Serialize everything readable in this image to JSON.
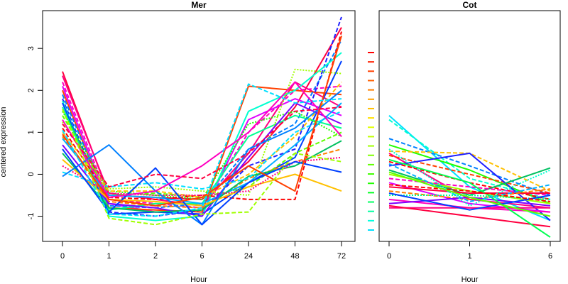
{
  "y_axis_label": "centered expression",
  "colors": {
    "palette": [
      "#ff0040",
      "#ff0080",
      "#ff00c0",
      "#e000ff",
      "#a000ff",
      "#6000ff",
      "#0040ff",
      "#0080ff",
      "#00b0ff",
      "#00e0ff",
      "#00ffd0",
      "#00ff90",
      "#00ff50",
      "#20ff00",
      "#60ff00",
      "#a0ff00",
      "#e0ff00",
      "#ffc000",
      "#ff8000",
      "#ff4000",
      "#ff0000",
      "#2020ff",
      "#8000ff",
      "#00c060"
    ],
    "legend_swatches": [
      "#ff0000",
      "#ff2000",
      "#ff4000",
      "#ff6000",
      "#ff8000",
      "#ffa000",
      "#ffc000",
      "#ffe000",
      "#e0ff00",
      "#c0ff00",
      "#a0ff00",
      "#80ff00",
      "#60ff00",
      "#40ff00",
      "#20ff00",
      "#00ff20",
      "#00ff60",
      "#00ffa0",
      "#00ffe0",
      "#00e0ff"
    ]
  },
  "chart_data": [
    {
      "type": "line",
      "title": "Mer",
      "xlabel": "Hour",
      "ylabel": "centered expression",
      "categories": [
        "0",
        "1",
        "2",
        "6",
        "24",
        "48",
        "72"
      ],
      "ylim": [
        -1.6,
        3.9
      ],
      "yticks": [
        -1,
        0,
        1,
        2,
        3
      ],
      "series": [
        {
          "values": [
            2.45,
            -0.5,
            -0.55,
            -0.6,
            0.3,
            1.6,
            3.5
          ],
          "color": "#ff0040",
          "dash": "solid"
        },
        {
          "values": [
            2.35,
            -0.45,
            -0.6,
            -0.75,
            0.5,
            2.2,
            1.6
          ],
          "color": "#ff0080",
          "dash": "solid"
        },
        {
          "values": [
            2.2,
            -0.6,
            -0.7,
            -0.8,
            1.0,
            2.0,
            2.1
          ],
          "color": "#ff00c0",
          "dash": "dashed"
        },
        {
          "values": [
            2.1,
            -0.7,
            -0.9,
            -0.95,
            1.3,
            1.8,
            1.4
          ],
          "color": "#e000ff",
          "dash": "solid"
        },
        {
          "values": [
            2.0,
            -0.8,
            -0.85,
            -0.9,
            2.1,
            2.0,
            1.9
          ],
          "color": "#ff4000",
          "dash": "solid"
        },
        {
          "values": [
            1.9,
            -0.75,
            -0.8,
            -0.7,
            0.6,
            1.2,
            3.2
          ],
          "color": "#0080ff",
          "dash": "dashed"
        },
        {
          "values": [
            1.8,
            -0.9,
            -1.0,
            -0.85,
            0.2,
            0.6,
            3.75
          ],
          "color": "#2020ff",
          "dash": "dashed"
        },
        {
          "values": [
            1.75,
            -1.0,
            -1.1,
            -1.0,
            1.5,
            2.0,
            2.9
          ],
          "color": "#00ffd0",
          "dash": "solid"
        },
        {
          "values": [
            1.7,
            -0.95,
            -0.9,
            -0.95,
            -0.2,
            0.4,
            2.7
          ],
          "color": "#0040ff",
          "dash": "solid"
        },
        {
          "values": [
            1.6,
            -0.85,
            -0.7,
            -0.7,
            0.9,
            1.4,
            1.1
          ],
          "color": "#00ff90",
          "dash": "solid"
        },
        {
          "values": [
            1.5,
            -0.4,
            -0.5,
            -0.6,
            1.2,
            1.5,
            0.9
          ],
          "color": "#20ff00",
          "dash": "dotted"
        },
        {
          "values": [
            1.4,
            -0.5,
            -0.45,
            -0.55,
            -0.3,
            0.5,
            1.0
          ],
          "color": "#60ff00",
          "dash": "dashed"
        },
        {
          "values": [
            1.25,
            -0.35,
            -0.3,
            -0.4,
            -0.5,
            2.5,
            2.4
          ],
          "color": "#a0ff00",
          "dash": "dotted"
        },
        {
          "values": [
            1.1,
            -0.55,
            -0.6,
            -0.5,
            -0.6,
            -0.6,
            3.4
          ],
          "color": "#ff0000",
          "dash": "dashed"
        },
        {
          "values": [
            1.0,
            -0.4,
            -0.4,
            -0.55,
            0.0,
            0.9,
            2.2
          ],
          "color": "#ffc000",
          "dash": "dashed"
        },
        {
          "values": [
            0.9,
            -0.65,
            -0.75,
            -0.8,
            -0.1,
            0.3,
            0.6
          ],
          "color": "#ff8000",
          "dash": "dashed"
        },
        {
          "values": [
            0.85,
            -0.5,
            -0.55,
            -0.7,
            -0.2,
            0.7,
            1.7
          ],
          "color": "#00b0ff",
          "dash": "solid"
        },
        {
          "values": [
            0.7,
            -0.7,
            -0.8,
            -1.0,
            0.4,
            1.7,
            1.2
          ],
          "color": "#8000ff",
          "dash": "solid"
        },
        {
          "values": [
            0.5,
            -0.8,
            -0.9,
            -0.85,
            -0.05,
            0.2,
            0.8
          ],
          "color": "#00c060",
          "dash": "solid"
        },
        {
          "values": [
            0.35,
            -0.6,
            -0.65,
            -0.75,
            -0.3,
            0.0,
            -0.4
          ],
          "color": "#ffc000",
          "dash": "solid"
        },
        {
          "values": [
            0.2,
            -0.45,
            -0.5,
            -0.5,
            -0.4,
            0.3,
            0.4
          ],
          "color": "#ff0080",
          "dash": "dotted"
        },
        {
          "values": [
            0.05,
            -0.3,
            -0.2,
            -0.35,
            -0.1,
            1.0,
            1.5
          ],
          "color": "#00e0ff",
          "dash": "dashed"
        },
        {
          "values": [
            -0.05,
            0.7,
            -0.4,
            -1.2,
            0.6,
            1.1,
            2.0
          ],
          "color": "#0080ff",
          "dash": "solid"
        },
        {
          "values": [
            0.6,
            -0.9,
            0.15,
            -1.2,
            -0.2,
            0.3,
            0.05
          ],
          "color": "#0040ff",
          "dash": "solid"
        },
        {
          "values": [
            1.3,
            -0.55,
            -0.4,
            0.2,
            1.0,
            2.2,
            0.9
          ],
          "color": "#ff00c0",
          "dash": "solid"
        },
        {
          "values": [
            0.95,
            -0.6,
            -0.75,
            -0.55,
            0.2,
            -0.4,
            3.3
          ],
          "color": "#ff4000",
          "dash": "solid"
        },
        {
          "values": [
            1.2,
            -0.3,
            0.0,
            -0.1,
            0.5,
            1.5,
            1.6
          ],
          "color": "#ff0040",
          "dash": "dashed"
        },
        {
          "values": [
            1.55,
            -1.05,
            -1.2,
            -0.95,
            -0.9,
            0.5,
            0.3
          ],
          "color": "#a0ff00",
          "dash": "dashed"
        },
        {
          "values": [
            1.05,
            -0.95,
            -1.0,
            -0.8,
            2.15,
            1.7,
            1.8
          ],
          "color": "#00e0ff",
          "dash": "dashed"
        }
      ]
    },
    {
      "type": "line",
      "title": "Cot",
      "xlabel": "Hour",
      "categories": [
        "0",
        "1",
        "6"
      ],
      "ylim": [
        -1.6,
        3.9
      ],
      "series": [
        {
          "values": [
            1.4,
            -0.3,
            -1.1
          ],
          "color": "#00e0ff",
          "dash": "solid"
        },
        {
          "values": [
            1.3,
            -0.1,
            -0.6
          ],
          "color": "#00ffd0",
          "dash": "dashed"
        },
        {
          "values": [
            0.85,
            0.2,
            -0.5
          ],
          "color": "#0080ff",
          "dash": "dashed"
        },
        {
          "values": [
            0.7,
            0.1,
            -0.7
          ],
          "color": "#20ff00",
          "dash": "solid"
        },
        {
          "values": [
            0.55,
            0.5,
            -0.4
          ],
          "color": "#ffc000",
          "dash": "dashed"
        },
        {
          "values": [
            0.5,
            -0.6,
            -0.8
          ],
          "color": "#ff0080",
          "dash": "solid"
        },
        {
          "values": [
            0.45,
            0.0,
            -0.45
          ],
          "color": "#ff4000",
          "dash": "dashed"
        },
        {
          "values": [
            0.3,
            -0.2,
            -0.6
          ],
          "color": "#ff0000",
          "dash": "dashed"
        },
        {
          "values": [
            0.2,
            0.5,
            -1.1
          ],
          "color": "#2020ff",
          "dash": "solid"
        },
        {
          "values": [
            0.1,
            -0.5,
            0.15
          ],
          "color": "#00c060",
          "dash": "solid"
        },
        {
          "values": [
            0.0,
            -0.4,
            -0.7
          ],
          "color": "#a0ff00",
          "dash": "solid"
        },
        {
          "values": [
            -0.1,
            -0.3,
            -0.5
          ],
          "color": "#ff00c0",
          "dash": "dashed"
        },
        {
          "values": [
            -0.2,
            -0.7,
            -0.9
          ],
          "color": "#e000ff",
          "dash": "solid"
        },
        {
          "values": [
            -0.3,
            -0.45,
            -0.45
          ],
          "color": "#ff0040",
          "dash": "solid"
        },
        {
          "values": [
            -0.4,
            -0.6,
            -0.35
          ],
          "color": "#ff8000",
          "dash": "dashed"
        },
        {
          "values": [
            -0.5,
            -0.5,
            -0.6
          ],
          "color": "#00ff90",
          "dash": "dotted"
        },
        {
          "values": [
            -0.6,
            -0.8,
            -0.9
          ],
          "color": "#ff00c0",
          "dash": "solid"
        },
        {
          "values": [
            -0.7,
            -0.55,
            -0.75
          ],
          "color": "#8000ff",
          "dash": "solid"
        },
        {
          "values": [
            -0.8,
            -0.8,
            -0.8
          ],
          "color": "#ff0080",
          "dash": "solid"
        },
        {
          "values": [
            -0.75,
            -1.0,
            -1.25
          ],
          "color": "#ff0040",
          "dash": "solid"
        },
        {
          "values": [
            0.35,
            -0.2,
            -1.5
          ],
          "color": "#00ff50",
          "dash": "solid"
        },
        {
          "values": [
            0.25,
            -0.65,
            -0.25
          ],
          "color": "#00b0ff",
          "dash": "dashed"
        },
        {
          "values": [
            0.6,
            -0.75,
            0.1
          ],
          "color": "#00ffd0",
          "dash": "dotted"
        },
        {
          "values": [
            -0.45,
            -0.85,
            -0.5
          ],
          "color": "#0040ff",
          "dash": "solid"
        },
        {
          "values": [
            -0.25,
            -0.4,
            -0.65
          ],
          "color": "#ff0000",
          "dash": "dashed"
        },
        {
          "values": [
            0.05,
            -0.55,
            -1.0
          ],
          "color": "#60ff00",
          "dash": "solid"
        }
      ]
    }
  ]
}
